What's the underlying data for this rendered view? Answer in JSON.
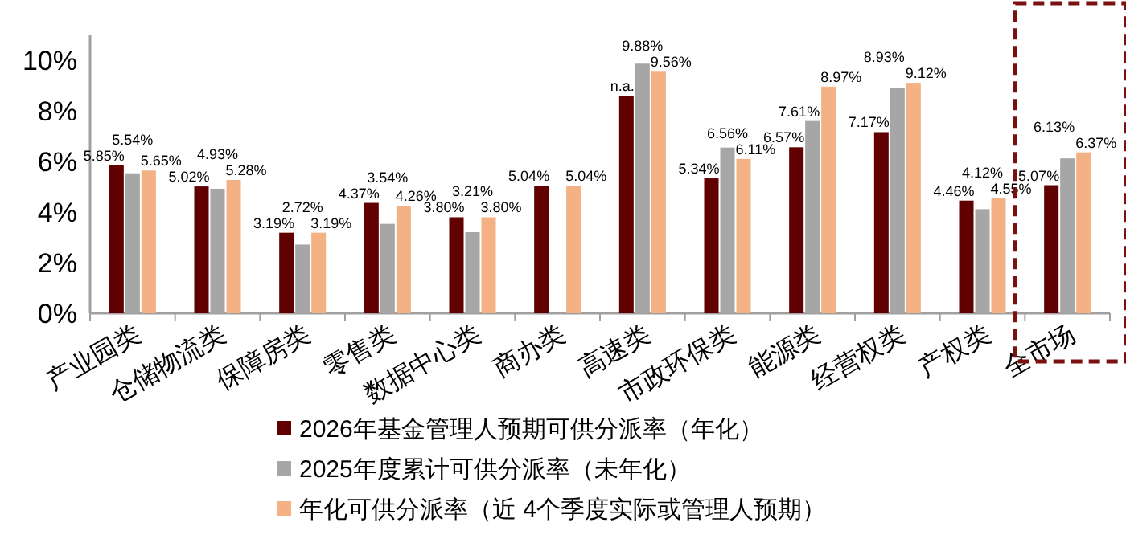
{
  "chart_data": {
    "type": "bar",
    "categories": [
      "产业园类",
      "仓储物流类",
      "保障房类",
      "零售类",
      "数据中心类",
      "商办类",
      "高速类",
      "市政环保类",
      "能源类",
      "经营权类",
      "产权类",
      "全市场"
    ],
    "series": [
      {
        "name": "2026年基金管理人预期可供分派率（年化）",
        "color": "#600000",
        "values": [
          5.85,
          5.02,
          3.19,
          4.37,
          3.8,
          5.04,
          8.6,
          5.34,
          6.57,
          7.17,
          4.46,
          5.07
        ],
        "value_labels": [
          "5.85%",
          "5.02%",
          "3.19%",
          "4.37%",
          "3.80%",
          "5.04%",
          "n.a.",
          "5.34%",
          "6.57%",
          "7.17%",
          "4.46%",
          "5.07%"
        ]
      },
      {
        "name": "2025年度累计可供分派率（未年化）",
        "color": "#a6a6a6",
        "values": [
          5.54,
          4.93,
          2.72,
          3.54,
          3.21,
          null,
          9.88,
          6.56,
          7.61,
          8.93,
          4.12,
          6.13
        ],
        "value_labels": [
          "5.54%",
          "4.93%",
          "2.72%",
          "3.54%",
          "3.21%",
          null,
          "9.88%",
          "6.56%",
          "7.61%",
          "8.93%",
          "4.12%",
          "6.13%"
        ]
      },
      {
        "name": "年化可供分派率（近 4个季度实际或管理人预期）",
        "color": "#f4b183",
        "values": [
          5.65,
          5.28,
          3.19,
          4.26,
          3.8,
          5.04,
          9.56,
          6.11,
          8.97,
          9.12,
          4.55,
          6.37
        ],
        "value_labels": [
          "5.65%",
          "5.28%",
          "3.19%",
          "4.26%",
          "3.80%",
          "5.04%",
          "9.56%",
          "6.11%",
          "8.97%",
          "9.12%",
          "4.55%",
          "6.37%"
        ]
      }
    ],
    "ylim": [
      0,
      11
    ],
    "yticks": [
      {
        "value": 0,
        "label": "0%"
      },
      {
        "value": 2,
        "label": "2%"
      },
      {
        "value": 4,
        "label": "4%"
      },
      {
        "value": 6,
        "label": "6%"
      },
      {
        "value": 8,
        "label": "8%"
      },
      {
        "value": 10,
        "label": "10%"
      }
    ],
    "grid": false,
    "legend": "bottom"
  }
}
